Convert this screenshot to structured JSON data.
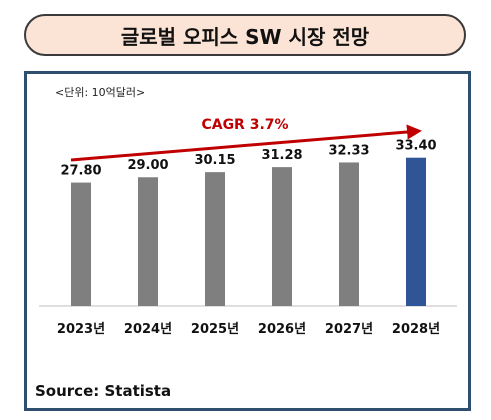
{
  "header": {
    "title": "글로벌 오피스 SW 시장 전망"
  },
  "chart_data": {
    "type": "bar",
    "unit_label": "<단위: 10억달러>",
    "categories": [
      "2023년",
      "2024년",
      "2025년",
      "2026년",
      "2027년",
      "2028년"
    ],
    "values": [
      27.8,
      29.0,
      30.15,
      31.28,
      32.33,
      33.4
    ],
    "value_labels": [
      "27.80",
      "29.00",
      "30.15",
      "31.28",
      "32.33",
      "33.40"
    ],
    "annotation": "CAGR 3.7%",
    "ylim": [
      0,
      50
    ],
    "colors": {
      "bar": "#7f7f7f",
      "highlight_bar": "#2f5597",
      "arrow": "#c00000",
      "axis": "#bfbfbf"
    },
    "highlight_index": 5
  },
  "footer": {
    "source": "Source: Statista"
  }
}
